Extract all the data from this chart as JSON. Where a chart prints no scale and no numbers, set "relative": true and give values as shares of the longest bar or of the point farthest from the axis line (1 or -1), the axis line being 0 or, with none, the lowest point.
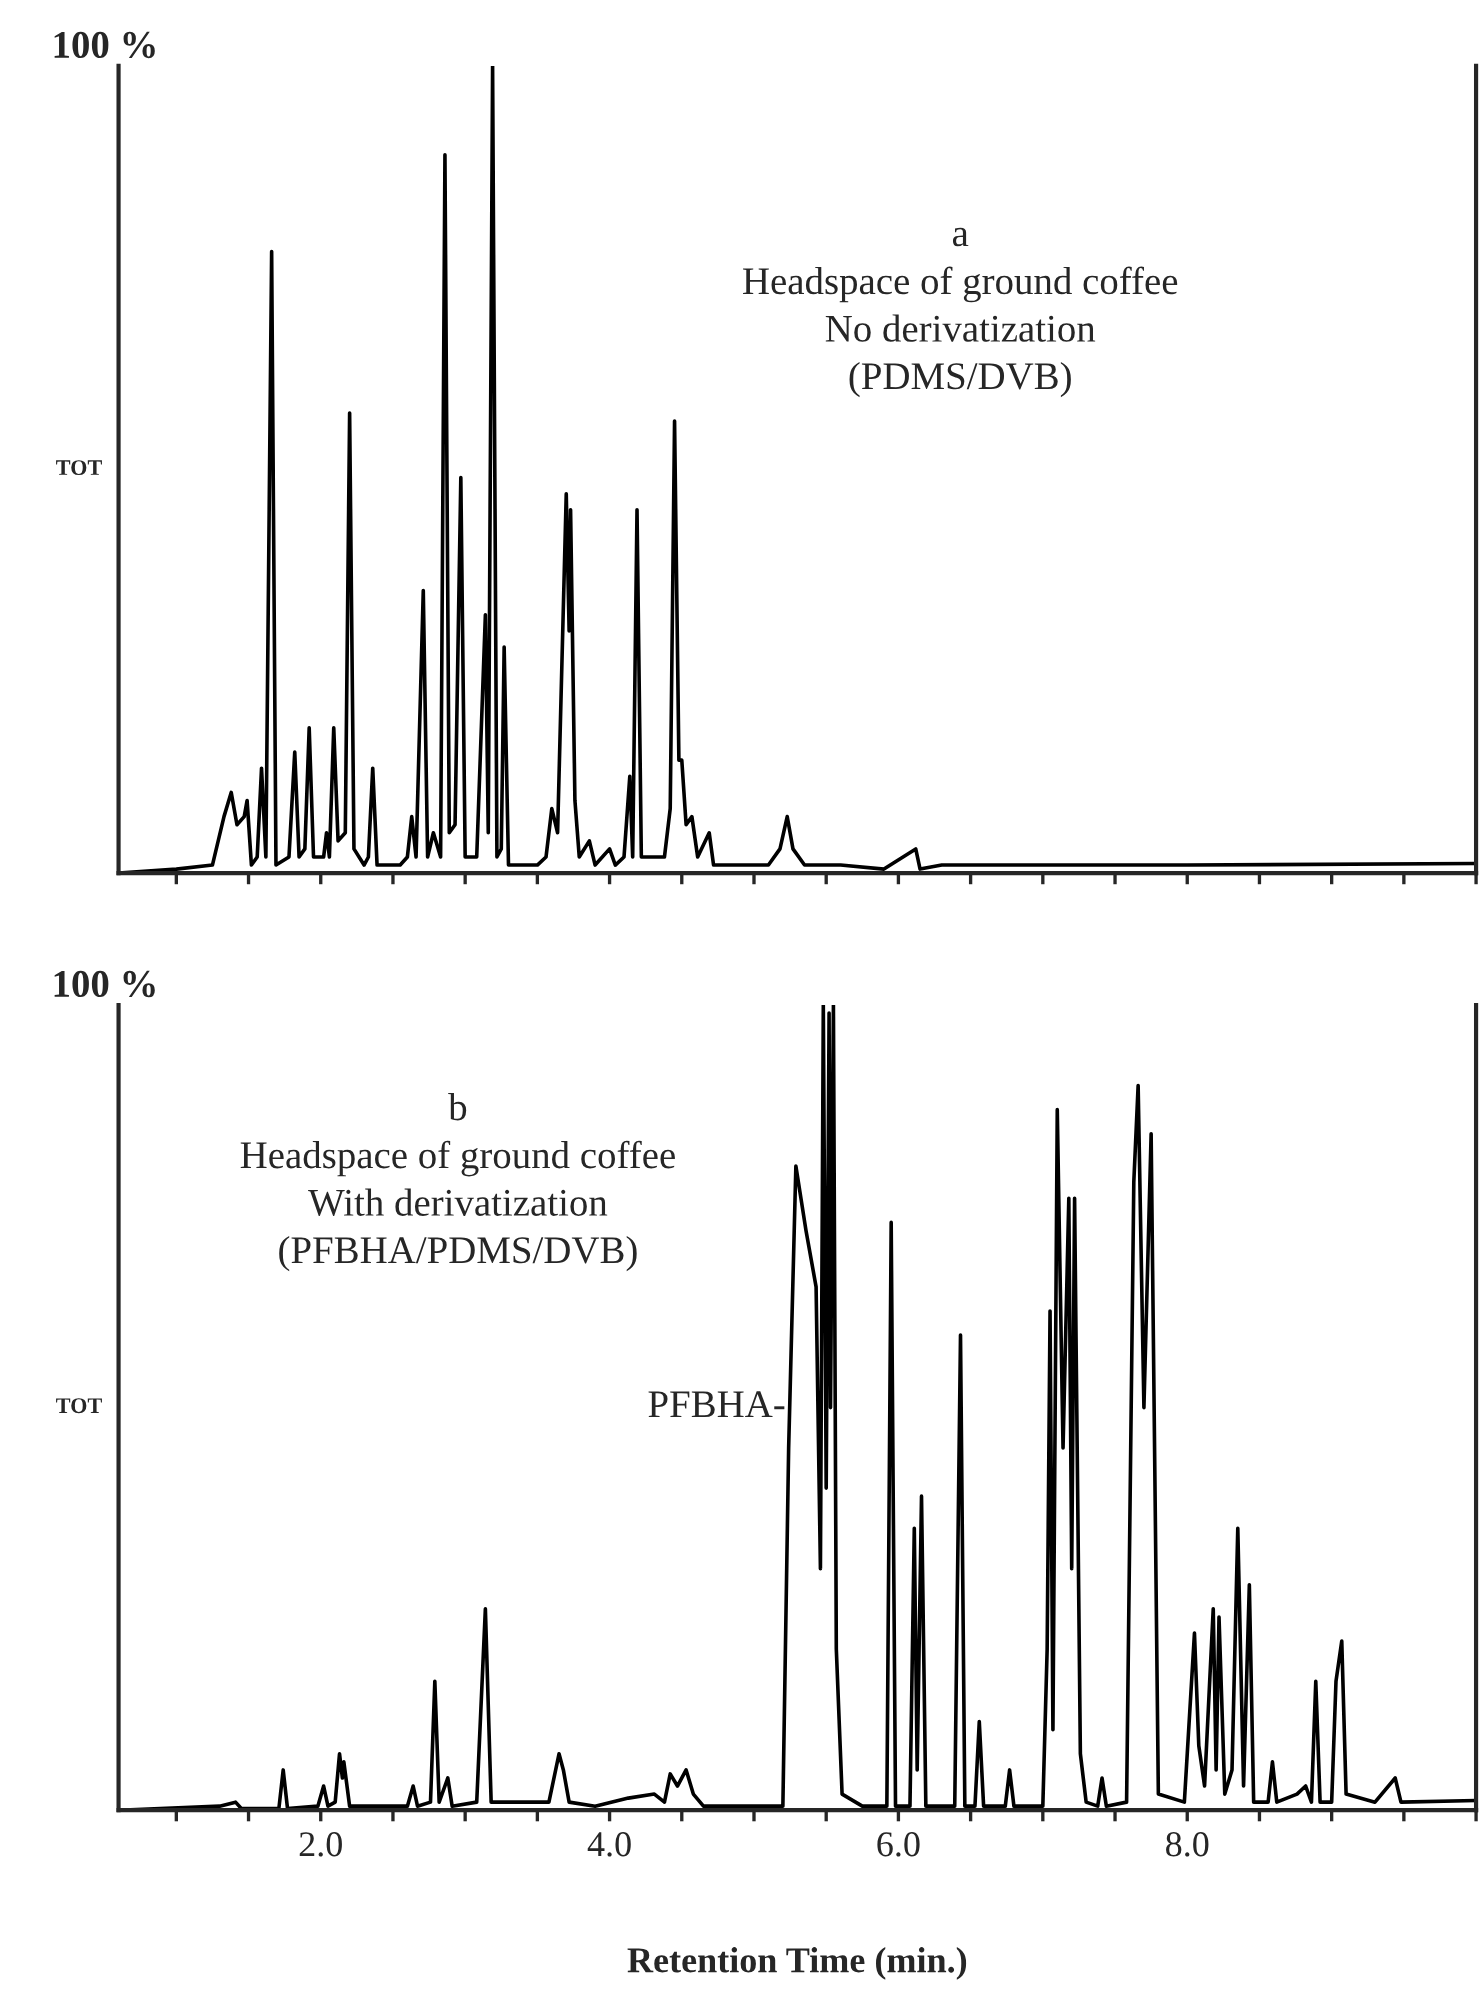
{
  "chart_data": [
    {
      "type": "line",
      "relative": true,
      "ylabel": "TOT",
      "xlim": [
        0.6,
        10.0
      ],
      "tick_labels": false,
      "xticks": [
        1.0,
        1.5,
        2.0,
        2.5,
        3.0,
        3.5,
        4.0,
        4.5,
        5.0,
        5.5,
        6.0,
        6.5,
        7.0,
        7.5,
        8.0,
        8.5,
        9.0,
        9.5,
        10.0
      ],
      "annotations": [
        "100 %",
        "a\nHeadspace of ground coffee\nNo derivatization\n(PDMS/DVB)"
      ],
      "series": [
        {
          "color": "#000000",
          "x": [
            0.6,
            1.0,
            1.25,
            1.33,
            1.38,
            1.42,
            1.47,
            1.49,
            1.52,
            1.56,
            1.59,
            1.62,
            1.66,
            1.69,
            1.78,
            1.82,
            1.85,
            1.89,
            1.92,
            1.95,
            2.02,
            2.04,
            2.06,
            2.09,
            2.12,
            2.17,
            2.2,
            2.23,
            2.3,
            2.33,
            2.36,
            2.39,
            2.55,
            2.6,
            2.63,
            2.66,
            2.71,
            2.74,
            2.78,
            2.83,
            2.86,
            2.89,
            2.93,
            2.97,
            3.0,
            3.08,
            3.14,
            3.16,
            3.19,
            3.22,
            3.25,
            3.27,
            3.3,
            3.5,
            3.56,
            3.6,
            3.64,
            3.7,
            3.72,
            3.73,
            3.76,
            3.79,
            3.86,
            3.9,
            4.0,
            4.04,
            4.1,
            4.14,
            4.16,
            4.19,
            4.22,
            4.38,
            4.42,
            4.45,
            4.48,
            4.5,
            4.53,
            4.57,
            4.61,
            4.69,
            4.72,
            4.85,
            5.1,
            5.18,
            5.23,
            5.27,
            5.35,
            5.6,
            5.9,
            6.12,
            6.15,
            6.3,
            8.0,
            10.0
          ],
          "values": [
            0,
            0.005,
            0.01,
            0.07,
            0.1,
            0.06,
            0.07,
            0.09,
            0.01,
            0.02,
            0.13,
            0.02,
            0.77,
            0.01,
            0.02,
            0.15,
            0.02,
            0.03,
            0.18,
            0.02,
            0.02,
            0.05,
            0.02,
            0.18,
            0.04,
            0.05,
            0.57,
            0.03,
            0.01,
            0.02,
            0.13,
            0.01,
            0.01,
            0.02,
            0.07,
            0.02,
            0.35,
            0.02,
            0.05,
            0.02,
            0.89,
            0.05,
            0.06,
            0.49,
            0.02,
            0.02,
            0.32,
            0.05,
            1.0,
            0.02,
            0.03,
            0.28,
            0.01,
            0.01,
            0.02,
            0.08,
            0.05,
            0.47,
            0.3,
            0.45,
            0.09,
            0.02,
            0.04,
            0.01,
            0.03,
            0.01,
            0.02,
            0.12,
            0.02,
            0.45,
            0.02,
            0.02,
            0.08,
            0.56,
            0.14,
            0.14,
            0.06,
            0.07,
            0.02,
            0.05,
            0.01,
            0.01,
            0.01,
            0.03,
            0.07,
            0.03,
            0.01,
            0.01,
            0.005,
            0.03,
            0.005,
            0.01,
            0.01,
            0.012
          ]
        }
      ]
    },
    {
      "type": "line",
      "relative": true,
      "ylabel": "TOT",
      "xlabel": "Retention Time (min.)",
      "xlim": [
        0.6,
        10.0
      ],
      "xticks": [
        {
          "value": 1.0,
          "label": null
        },
        {
          "value": 1.5,
          "label": null
        },
        {
          "value": 2.0,
          "label": "2.0"
        },
        {
          "value": 2.5,
          "label": null
        },
        {
          "value": 3.0,
          "label": null
        },
        {
          "value": 3.5,
          "label": null
        },
        {
          "value": 4.0,
          "label": "4.0"
        },
        {
          "value": 4.5,
          "label": null
        },
        {
          "value": 5.0,
          "label": null
        },
        {
          "value": 5.5,
          "label": null
        },
        {
          "value": 6.0,
          "label": "6.0"
        },
        {
          "value": 6.5,
          "label": null
        },
        {
          "value": 7.0,
          "label": null
        },
        {
          "value": 7.5,
          "label": null
        },
        {
          "value": 8.0,
          "label": "8.0"
        },
        {
          "value": 8.5,
          "label": null
        },
        {
          "value": 9.0,
          "label": null
        },
        {
          "value": 9.5,
          "label": null
        },
        {
          "value": 10.0,
          "label": null
        }
      ],
      "annotations": [
        "100 %",
        "b\nHeadspace of ground coffee\nWith derivatization\n(PFBHA/PDMS/DVB)",
        {
          "text": "PFBHA-",
          "x": 5.22,
          "y": 0.5
        }
      ],
      "series": [
        {
          "color": "#000000",
          "x": [
            0.6,
            1.3,
            1.41,
            1.45,
            1.71,
            1.74,
            1.77,
            1.98,
            2.02,
            2.05,
            2.1,
            2.13,
            2.15,
            2.16,
            2.2,
            2.6,
            2.64,
            2.67,
            2.76,
            2.79,
            2.82,
            2.88,
            2.91,
            3.08,
            3.14,
            3.18,
            3.58,
            3.65,
            3.68,
            3.72,
            3.9,
            4.13,
            4.31,
            4.38,
            4.42,
            4.47,
            4.53,
            4.58,
            4.65,
            5.2,
            5.24,
            5.29,
            5.36,
            5.43,
            5.46,
            5.48,
            5.5,
            5.52,
            5.53,
            5.55,
            5.57,
            5.61,
            5.75,
            5.92,
            5.95,
            5.98,
            6.08,
            6.11,
            6.13,
            6.16,
            6.19,
            6.39,
            6.43,
            6.46,
            6.53,
            6.56,
            6.59,
            6.74,
            6.77,
            6.8,
            7.0,
            7.03,
            7.05,
            7.07,
            7.1,
            7.14,
            7.18,
            7.2,
            7.22,
            7.26,
            7.3,
            7.38,
            7.41,
            7.44,
            7.58,
            7.63,
            7.66,
            7.7,
            7.75,
            7.8,
            7.98,
            8.05,
            8.08,
            8.12,
            8.18,
            8.2,
            8.22,
            8.26,
            8.31,
            8.35,
            8.39,
            8.43,
            8.46,
            8.56,
            8.59,
            8.62,
            8.76,
            8.82,
            8.86,
            8.89,
            8.92,
            9.0,
            9.03,
            9.07,
            9.1,
            9.3,
            9.44,
            9.48,
            10.0
          ],
          "values": [
            0,
            0.005,
            0.01,
            0.002,
            0.002,
            0.05,
            0.002,
            0.005,
            0.03,
            0.005,
            0.01,
            0.07,
            0.04,
            0.06,
            0.005,
            0.005,
            0.03,
            0.005,
            0.01,
            0.16,
            0.01,
            0.04,
            0.005,
            0.01,
            0.25,
            0.01,
            0.01,
            0.07,
            0.05,
            0.01,
            0.005,
            0.015,
            0.02,
            0.01,
            0.045,
            0.03,
            0.05,
            0.02,
            0.005,
            0.005,
            0.45,
            0.8,
            0.72,
            0.65,
            0.3,
            1.0,
            0.4,
            0.99,
            0.5,
            1.0,
            0.2,
            0.02,
            0.005,
            0.005,
            0.73,
            0.005,
            0.005,
            0.35,
            0.05,
            0.39,
            0.005,
            0.005,
            0.59,
            0.005,
            0.005,
            0.11,
            0.005,
            0.005,
            0.05,
            0.005,
            0.005,
            0.2,
            0.62,
            0.1,
            0.87,
            0.45,
            0.76,
            0.3,
            0.76,
            0.07,
            0.01,
            0.005,
            0.04,
            0.005,
            0.01,
            0.78,
            0.9,
            0.5,
            0.84,
            0.02,
            0.01,
            0.22,
            0.08,
            0.03,
            0.25,
            0.05,
            0.24,
            0.02,
            0.05,
            0.35,
            0.03,
            0.28,
            0.01,
            0.01,
            0.06,
            0.01,
            0.02,
            0.03,
            0.01,
            0.16,
            0.01,
            0.01,
            0.16,
            0.21,
            0.02,
            0.01,
            0.04,
            0.01,
            0.012
          ]
        }
      ]
    }
  ]
}
